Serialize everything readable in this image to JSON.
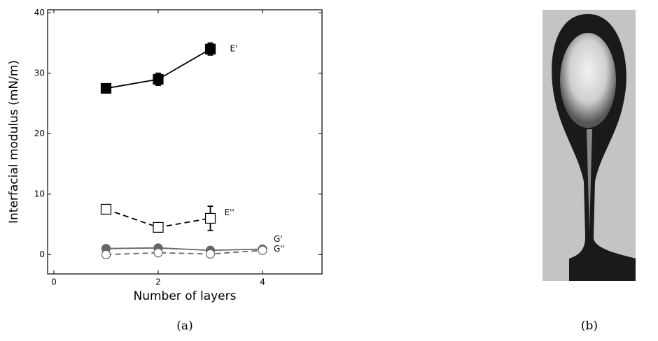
{
  "chart_data": {
    "type": "line",
    "xlabel": "Number of layers",
    "ylabel": "Interfacial modulus (mN/m)",
    "xlim": [
      -0.12,
      5.14
    ],
    "ylim": [
      -3.2,
      40.5
    ],
    "xticks": [
      0,
      2,
      4
    ],
    "yticks": [
      0,
      10,
      20,
      30,
      40
    ],
    "series": [
      {
        "name": "E'",
        "color": "#000000",
        "marker": "square",
        "filled": true,
        "dashed": false,
        "x": [
          1,
          2,
          3
        ],
        "values": [
          27.5,
          29,
          34
        ],
        "errors": [
          0.4,
          1,
          1
        ]
      },
      {
        "name": "E''",
        "color": "#000000",
        "marker": "square",
        "filled": false,
        "dashed": true,
        "x": [
          1,
          2,
          3
        ],
        "values": [
          7.5,
          4.5,
          6
        ],
        "errors": [
          null,
          null,
          2
        ]
      },
      {
        "name": "G'",
        "color": "#666666",
        "marker": "circle",
        "filled": true,
        "dashed": false,
        "x": [
          1,
          2,
          3,
          4
        ],
        "values": [
          1,
          1.1,
          0.7,
          0.9
        ]
      },
      {
        "name": "G''",
        "color": "#666666",
        "marker": "circle",
        "filled": false,
        "dashed": true,
        "x": [
          1,
          2,
          3,
          4
        ],
        "values": [
          0,
          0.3,
          0.1,
          0.7
        ]
      }
    ]
  },
  "captions": [
    "(a)",
    "(b)"
  ]
}
